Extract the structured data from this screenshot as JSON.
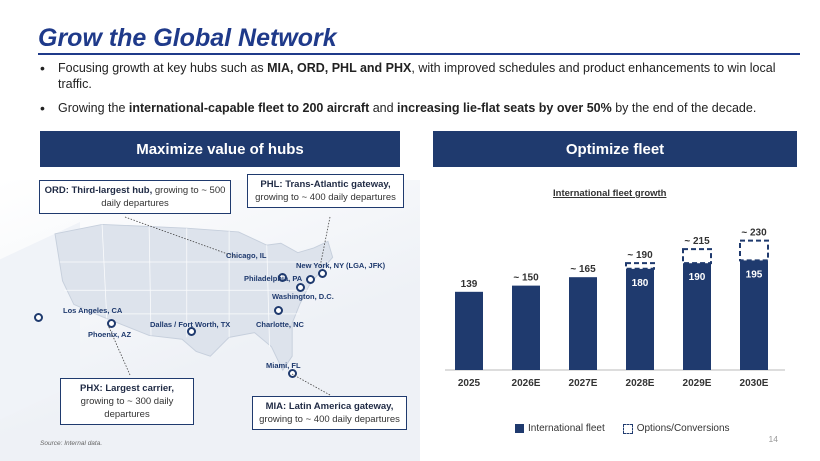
{
  "title": "Grow the Global Network",
  "bullets": [
    {
      "parts": [
        {
          "t": "Focusing growth at key hubs such as ",
          "b": false
        },
        {
          "t": "MIA, ORD, PHL and PHX",
          "b": true
        },
        {
          "t": ", with improved schedules and product enhancements to win local traffic.",
          "b": false
        }
      ]
    },
    {
      "parts": [
        {
          "t": "Growing the ",
          "b": false
        },
        {
          "t": "international-capable fleet to 200 aircraft",
          "b": true
        },
        {
          "t": " and ",
          "b": false
        },
        {
          "t": "increasing lie-flat seats by over 50%",
          "b": true
        },
        {
          "t": " by the end of the decade.",
          "b": false
        }
      ]
    }
  ],
  "left_panel": {
    "header": "Maximize value of hubs"
  },
  "right_panel": {
    "header": "Optimize fleet"
  },
  "cities": {
    "chicago": "Chicago, IL",
    "new_york": "New York, NY (LGA, JFK)",
    "philadelphia": "Philadelphia, PA",
    "washington": "Washington, D.C.",
    "los_angeles": "Los Angeles, CA",
    "phoenix": "Phoenix, AZ",
    "dallas": "Dallas / Fort Worth, TX",
    "charlotte": "Charlotte, NC",
    "miami": "Miami, FL"
  },
  "callouts": {
    "ord": {
      "bold": "ORD: Third-largest hub,",
      "rest": " growing to ~ 500 daily departures"
    },
    "phl": {
      "bold": "PHL: Trans-Atlantic gateway,",
      "rest": " growing to ~ 400 daily departures"
    },
    "phx": {
      "bold": "PHX: Largest carrier,",
      "rest": " growing to ~ 300 daily departures"
    },
    "mia": {
      "bold": "MIA: Latin America gateway,",
      "rest": " growing to ~ 400 daily departures"
    }
  },
  "chart_data": {
    "type": "bar",
    "title": "International fleet growth",
    "categories": [
      "2025",
      "2026E",
      "2027E",
      "2028E",
      "2029E",
      "2030E"
    ],
    "series": [
      {
        "name": "International fleet",
        "values": [
          139,
          150,
          165,
          180,
          190,
          195
        ]
      },
      {
        "name": "Options/Conversions",
        "values": [
          0,
          0,
          0,
          10,
          25,
          35
        ]
      }
    ],
    "top_labels": [
      "139",
      "~ 150",
      "~ 165",
      "~ 190",
      "~ 215",
      "~ 230"
    ],
    "inner_labels": [
      "",
      "",
      "",
      "180",
      "190",
      "195"
    ],
    "ylim": [
      0,
      240
    ],
    "colors": {
      "fleet": "#1f3a6e",
      "options_border": "#1f3a6e"
    }
  },
  "legend": {
    "fleet": "International fleet",
    "options": "Options/Conversions"
  },
  "source": "Source: Internal data.",
  "page_number": "14"
}
